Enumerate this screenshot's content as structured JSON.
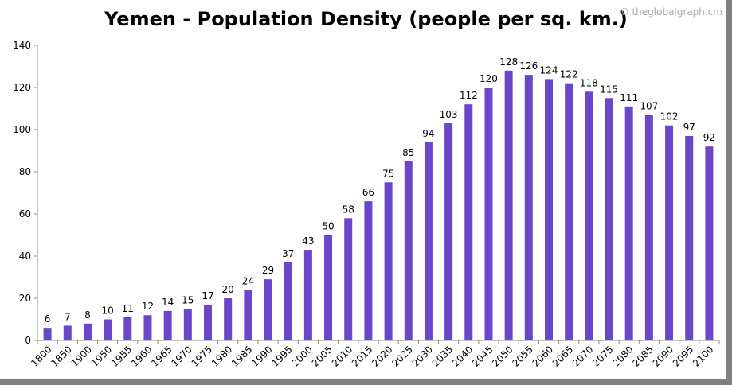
{
  "chart_data": {
    "type": "bar",
    "title": "Yemen - Population Density (people per sq. km.)",
    "watermark": "© theglobalgraph.cm",
    "categories": [
      "1800",
      "1850",
      "1900",
      "1950",
      "1955",
      "1960",
      "1965",
      "1970",
      "1975",
      "1980",
      "1985",
      "1990",
      "1995",
      "2000",
      "2005",
      "2010",
      "2015",
      "2020",
      "2025",
      "2030",
      "2035",
      "2040",
      "2045",
      "2050",
      "2055",
      "2060",
      "2065",
      "2070",
      "2075",
      "2080",
      "2085",
      "2090",
      "2095",
      "2100"
    ],
    "values": [
      6,
      7,
      8,
      10,
      11,
      12,
      14,
      15,
      17,
      20,
      24,
      29,
      37,
      43,
      50,
      58,
      66,
      75,
      85,
      94,
      103,
      112,
      120,
      128,
      126,
      124,
      122,
      118,
      115,
      111,
      107,
      102,
      97,
      92
    ],
    "ylim": [
      0,
      140
    ],
    "yticks": [
      0,
      20,
      40,
      60,
      80,
      100,
      120,
      140
    ],
    "xlabel": "",
    "ylabel": "",
    "grid": false,
    "legend": "none",
    "bar_color": "#6a47c8"
  }
}
